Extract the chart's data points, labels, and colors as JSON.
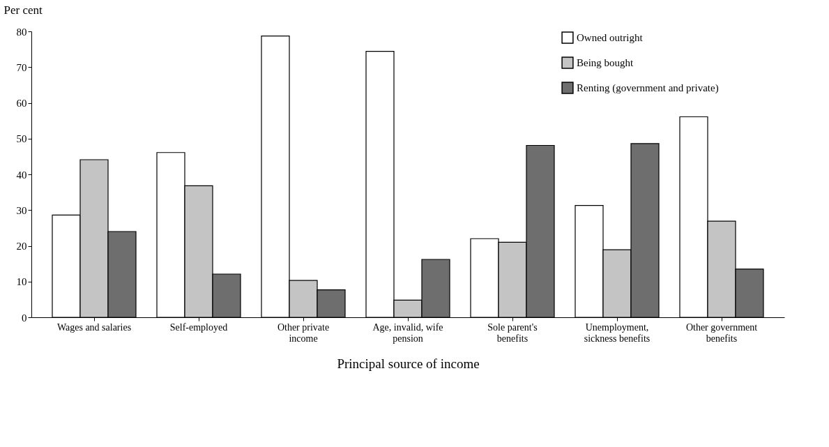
{
  "chart_data": {
    "type": "bar",
    "ylabel": "Per cent",
    "xlabel": "Principal source of income",
    "categories": [
      "Wages and salaries",
      "Self-employed",
      "Other private income",
      "Age, invalid, wife pension",
      "Sole parent's benefits",
      "Unemployment, sickness benefits",
      "Other government benefits"
    ],
    "series": [
      {
        "name": "Owned outright",
        "color": "#ffffff",
        "values": [
          28.6,
          46.1,
          78.7,
          74.4,
          22.0,
          31.3,
          56.1
        ]
      },
      {
        "name": "Being bought",
        "color": "#c4c4c4",
        "values": [
          44.1,
          36.8,
          10.3,
          4.8,
          21.0,
          18.9,
          26.9
        ]
      },
      {
        "name": "Renting (government and private)",
        "color": "#6e6e6e",
        "values": [
          24.0,
          12.1,
          7.7,
          16.2,
          48.1,
          48.6,
          13.5
        ]
      }
    ],
    "ylim": [
      0,
      80
    ],
    "yticks": [
      0,
      10,
      20,
      30,
      40,
      50,
      60,
      70,
      80
    ],
    "grid": false,
    "legend": "top right"
  }
}
